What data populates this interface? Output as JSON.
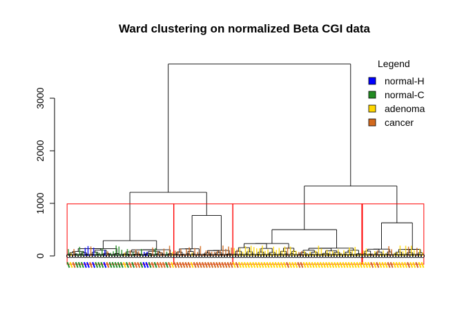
{
  "chart_data": {
    "type": "dendrogram",
    "title": "Ward clustering on normalized Beta CGI data",
    "xlabel": "",
    "ylabel": "",
    "ylim": [
      0,
      3700
    ],
    "yticks": [
      0,
      1000,
      2000,
      3000
    ],
    "ytick_labels": [
      "0",
      "1000",
      "2000",
      "3000"
    ],
    "legend": {
      "title": "Legend",
      "placement": "top-right",
      "items": [
        {
          "label": "normal-H",
          "color": "#0000ff"
        },
        {
          "label": "normal-C",
          "color": "#228b22"
        },
        {
          "label": "adenoma",
          "color": "#ffd700"
        },
        {
          "label": "cancer",
          "color": "#d2691e"
        }
      ]
    },
    "merge_heights": {
      "root": 3650,
      "left_group": 1210,
      "right_group": 1330,
      "cluster2": 770,
      "cluster3": 500,
      "cluster4": 630,
      "cluster1": 290
    },
    "cut_height": 990,
    "cut_box_color": "#ff0000",
    "clusters": [
      {
        "id": 1,
        "leaves": 38,
        "composition": "normal-H and normal-C"
      },
      {
        "id": 2,
        "leaves": 21,
        "composition": "cancer and adenoma"
      },
      {
        "id": 3,
        "leaves": 46,
        "composition": "adenoma"
      },
      {
        "id": 4,
        "leaves": 22,
        "composition": "adenoma and cancer"
      }
    ]
  }
}
